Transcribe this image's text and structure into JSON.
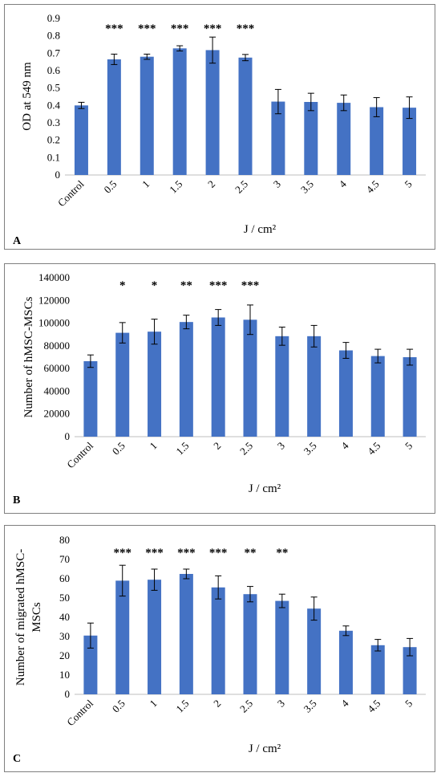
{
  "chart_data": [
    {
      "type": "bar",
      "panel_label": "A",
      "categories": [
        "Control",
        "0.5",
        "1",
        "1.5",
        "2",
        "2.5",
        "3",
        "3.5",
        "4",
        "4.5",
        "5"
      ],
      "values": [
        0.4,
        0.665,
        0.68,
        0.728,
        0.718,
        0.675,
        0.422,
        0.42,
        0.415,
        0.39,
        0.387
      ],
      "errors": [
        0.018,
        0.03,
        0.015,
        0.015,
        0.075,
        0.018,
        0.07,
        0.05,
        0.045,
        0.055,
        0.062
      ],
      "significance": [
        "",
        "***",
        "***",
        "***",
        "***",
        "***",
        "",
        "",
        "",
        "",
        ""
      ],
      "xlabel": "J / cm²",
      "ylabel": "OD at 549 nm",
      "ylim": [
        0,
        0.9
      ],
      "yticks": [
        "0",
        "0.1",
        "0.2",
        "0.3",
        "0.4",
        "0.5",
        "0.6",
        "0.7",
        "0.8",
        "0.9"
      ],
      "grid": false,
      "color": "#4472c4"
    },
    {
      "type": "bar",
      "panel_label": "B",
      "categories": [
        "Control",
        "0.5",
        "1",
        "1.5",
        "2",
        "2.5",
        "3",
        "3.5",
        "4",
        "4.5",
        "5"
      ],
      "values": [
        66500,
        91500,
        92500,
        101000,
        105000,
        103000,
        88500,
        88500,
        76000,
        71000,
        70000
      ],
      "errors": [
        5500,
        9000,
        11000,
        6000,
        7000,
        13000,
        8000,
        9500,
        7000,
        6000,
        7000
      ],
      "significance": [
        "",
        "*",
        "*",
        "**",
        "***",
        "***",
        "",
        "",
        "",
        "",
        ""
      ],
      "xlabel": "J / cm²",
      "ylabel": "Number of hMSC-MSCs",
      "ylim": [
        0,
        140000
      ],
      "yticks": [
        "0",
        "20000",
        "40000",
        "60000",
        "80000",
        "100000",
        "120000",
        "140000"
      ],
      "grid": false,
      "color": "#4472c4"
    },
    {
      "type": "bar",
      "panel_label": "C",
      "categories": [
        "Control",
        "0.5",
        "1",
        "1.5",
        "2",
        "2.5",
        "3",
        "3.5",
        "4",
        "4.5",
        "5"
      ],
      "values": [
        30.5,
        59,
        59.5,
        62.5,
        55.5,
        52,
        48.5,
        44.5,
        33,
        25.5,
        24.5
      ],
      "errors": [
        6.5,
        8,
        5.5,
        2.5,
        6,
        4,
        3.5,
        6,
        2.5,
        3,
        4.5
      ],
      "significance": [
        "",
        "***",
        "***",
        "***",
        "***",
        "**",
        "**",
        "",
        "",
        "",
        ""
      ],
      "xlabel": "J / cm²",
      "ylabel_lines": [
        "Number of migrated hMSC-",
        "MSCs"
      ],
      "ylim": [
        0,
        80
      ],
      "yticks": [
        "0",
        "10",
        "20",
        "30",
        "40",
        "50",
        "60",
        "70",
        "80"
      ],
      "grid": false,
      "color": "#4472c4"
    }
  ]
}
